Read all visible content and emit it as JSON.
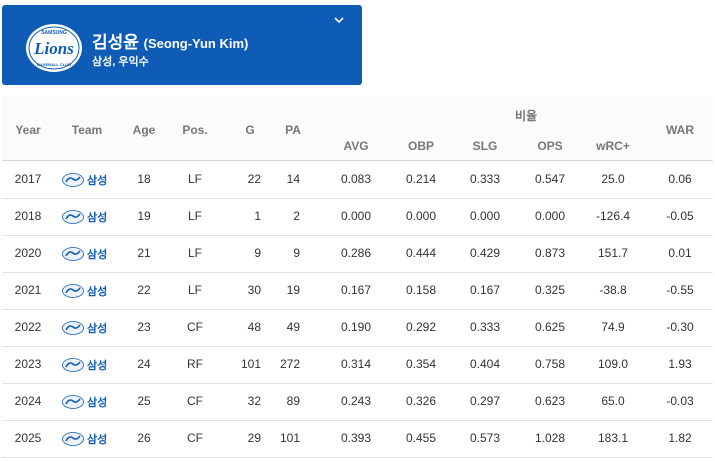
{
  "player": {
    "name_ko": "김성윤",
    "name_en": "(Seong-Yun Kim)",
    "subtitle": "삼성, 우익수",
    "logo_text": "Lions",
    "logo_top_text": "SAMSUNG",
    "logo_bottom_text": "BASEBALL CLUB",
    "expand_icon": "chevron-down-icon"
  },
  "colors": {
    "brand": "#0f5cb6",
    "header_bg": "#fafbfc"
  },
  "table": {
    "group_header": "비율",
    "columns": {
      "year": "Year",
      "team": "Team",
      "age": "Age",
      "pos": "Pos.",
      "g": "G",
      "pa": "PA",
      "avg": "AVG",
      "obp": "OBP",
      "slg": "SLG",
      "ops": "OPS",
      "wrc": "wRC+",
      "war": "WAR"
    },
    "rows": [
      {
        "year": "2017",
        "team": "삼성",
        "age": "18",
        "pos": "LF",
        "g": "22",
        "pa": "14",
        "avg": "0.083",
        "obp": "0.214",
        "slg": "0.333",
        "ops": "0.547",
        "wrc": "25.0",
        "war": "0.06"
      },
      {
        "year": "2018",
        "team": "삼성",
        "age": "19",
        "pos": "LF",
        "g": "1",
        "pa": "2",
        "avg": "0.000",
        "obp": "0.000",
        "slg": "0.000",
        "ops": "0.000",
        "wrc": "-126.4",
        "war": "-0.05"
      },
      {
        "year": "2020",
        "team": "삼성",
        "age": "21",
        "pos": "LF",
        "g": "9",
        "pa": "9",
        "avg": "0.286",
        "obp": "0.444",
        "slg": "0.429",
        "ops": "0.873",
        "wrc": "151.7",
        "war": "0.01"
      },
      {
        "year": "2021",
        "team": "삼성",
        "age": "22",
        "pos": "LF",
        "g": "30",
        "pa": "19",
        "avg": "0.167",
        "obp": "0.158",
        "slg": "0.167",
        "ops": "0.325",
        "wrc": "-38.8",
        "war": "-0.55"
      },
      {
        "year": "2022",
        "team": "삼성",
        "age": "23",
        "pos": "CF",
        "g": "48",
        "pa": "49",
        "avg": "0.190",
        "obp": "0.292",
        "slg": "0.333",
        "ops": "0.625",
        "wrc": "74.9",
        "war": "-0.30"
      },
      {
        "year": "2023",
        "team": "삼성",
        "age": "24",
        "pos": "RF",
        "g": "101",
        "pa": "272",
        "avg": "0.314",
        "obp": "0.354",
        "slg": "0.404",
        "ops": "0.758",
        "wrc": "109.0",
        "war": "1.93"
      },
      {
        "year": "2024",
        "team": "삼성",
        "age": "25",
        "pos": "CF",
        "g": "32",
        "pa": "89",
        "avg": "0.243",
        "obp": "0.326",
        "slg": "0.297",
        "ops": "0.623",
        "wrc": "65.0",
        "war": "-0.03"
      },
      {
        "year": "2025",
        "team": "삼성",
        "age": "26",
        "pos": "CF",
        "g": "29",
        "pa": "101",
        "avg": "0.393",
        "obp": "0.455",
        "slg": "0.573",
        "ops": "1.028",
        "wrc": "183.1",
        "war": "1.82"
      }
    ]
  }
}
